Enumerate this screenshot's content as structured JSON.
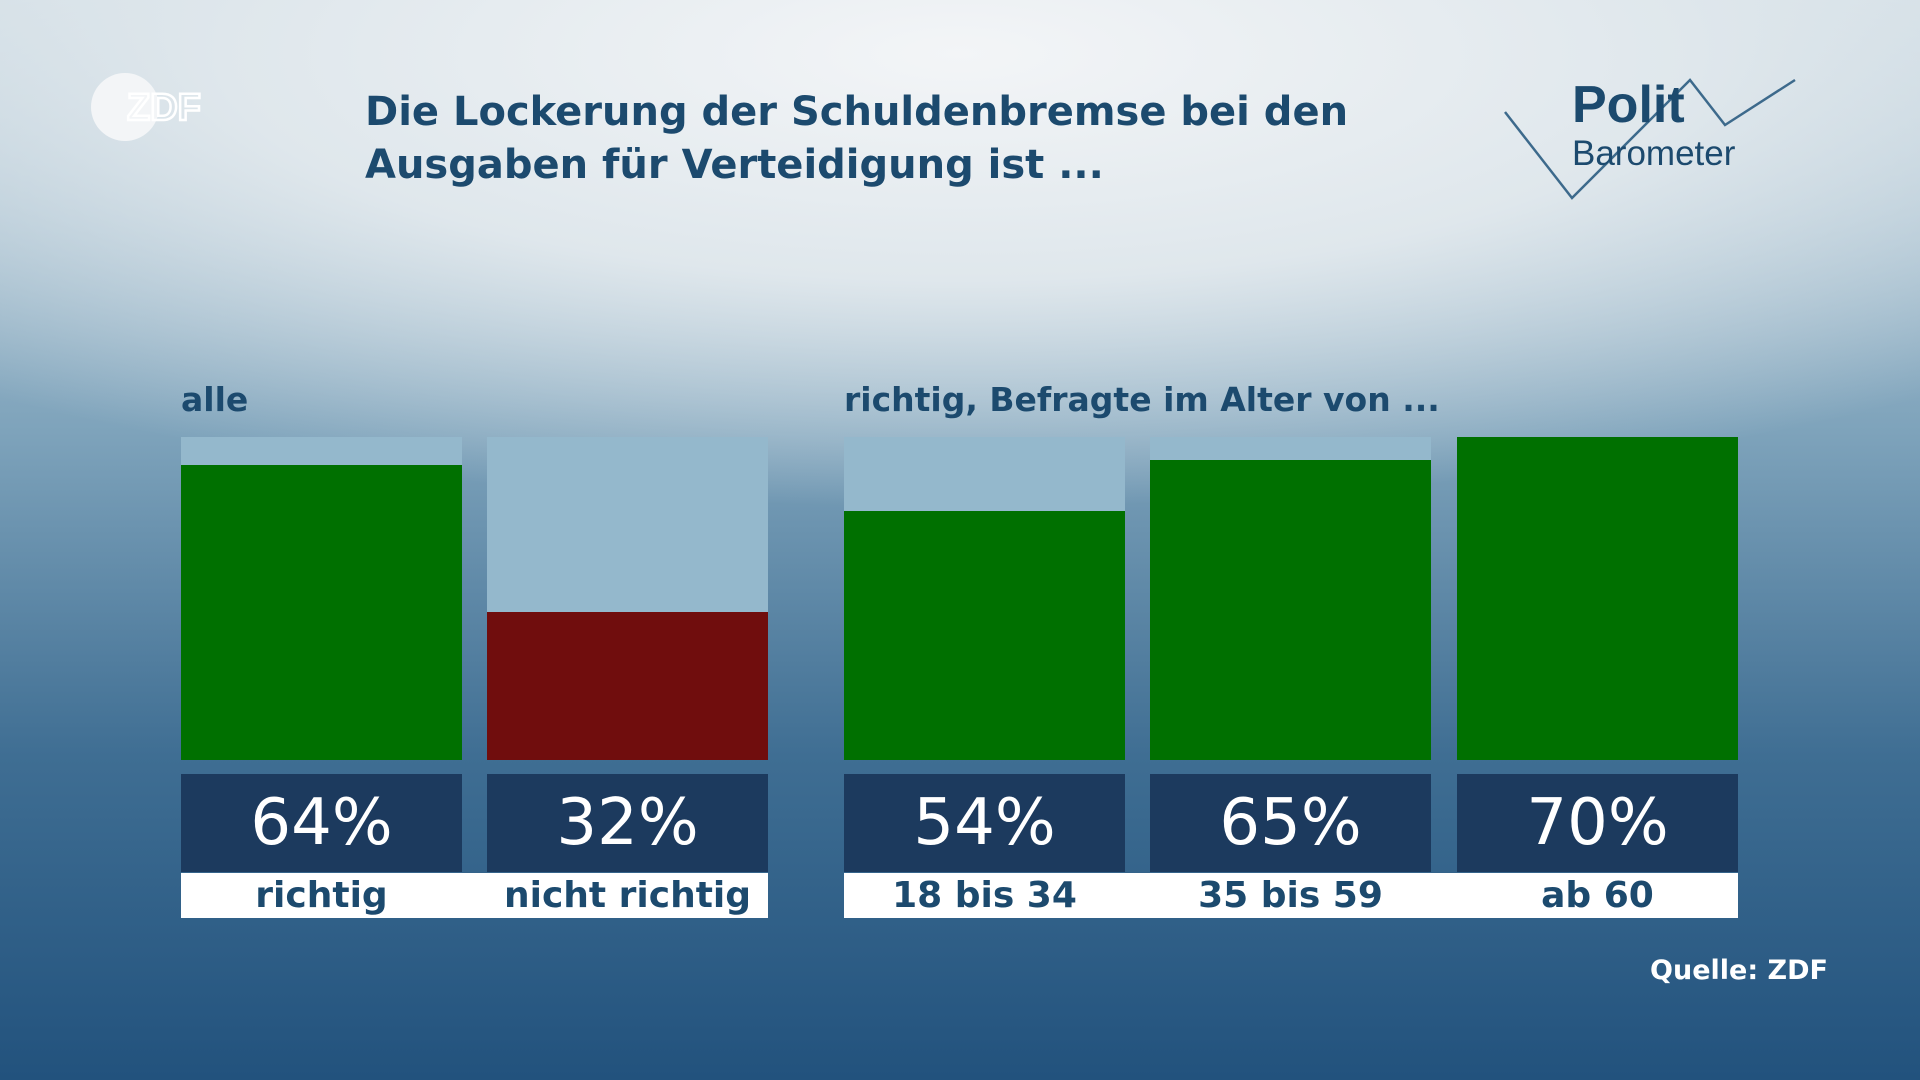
{
  "title_line1": "Die Lockerung der Schuldenbremse bei den",
  "title_line2": "Ausgaben für Verteidigung ist ...",
  "logo": "ZDF",
  "brand": {
    "line1": "Polit",
    "line2": "Barometer"
  },
  "source": "Quelle: ZDF",
  "colors": {
    "positive": "#007000",
    "negative": "#700d0d",
    "track": "#94b8cc",
    "value_box": "#1c3a5e"
  },
  "chart_data": {
    "type": "bar",
    "ylim": [
      0,
      70
    ],
    "groups": [
      {
        "label": "alle",
        "categories": [
          "richtig",
          "nicht richtig"
        ],
        "values": [
          64,
          32
        ],
        "display": [
          "64%",
          "32%"
        ]
      },
      {
        "label": "richtig, Befragte im Alter von ...",
        "categories": [
          "18 bis 34",
          "35 bis 59",
          "ab 60"
        ],
        "values": [
          54,
          65,
          70
        ],
        "display": [
          "54%",
          "65%",
          "70%"
        ]
      }
    ]
  }
}
